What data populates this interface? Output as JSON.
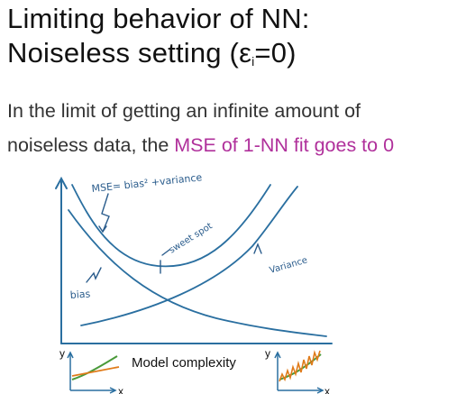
{
  "slide": {
    "title_line1": "Limiting behavior of NN:",
    "title_line2_prefix": "Noiseless setting (ε",
    "title_line2_sub": "i",
    "title_line2_suffix": "=0)",
    "body_line1": "In the limit of getting an infinite amount of",
    "body_line2_prefix": "noiseless data, the ",
    "body_line2_highlight": "MSE of 1-NN fit goes to 0"
  },
  "figure": {
    "mse_label": "MSE= bias² +variance",
    "sweet_spot_label": "sweet spot",
    "variance_label": "Variance",
    "bias_label": "bias",
    "x_axis_label": "Model complexity",
    "y_letter": "y",
    "x_letter": "x"
  },
  "colors": {
    "accent": "#b0309b",
    "curve": "#2a6fa0",
    "ink": "#2a5c8c",
    "thumb_orange": "#e07b1a",
    "thumb_green": "#4a9a3a"
  }
}
